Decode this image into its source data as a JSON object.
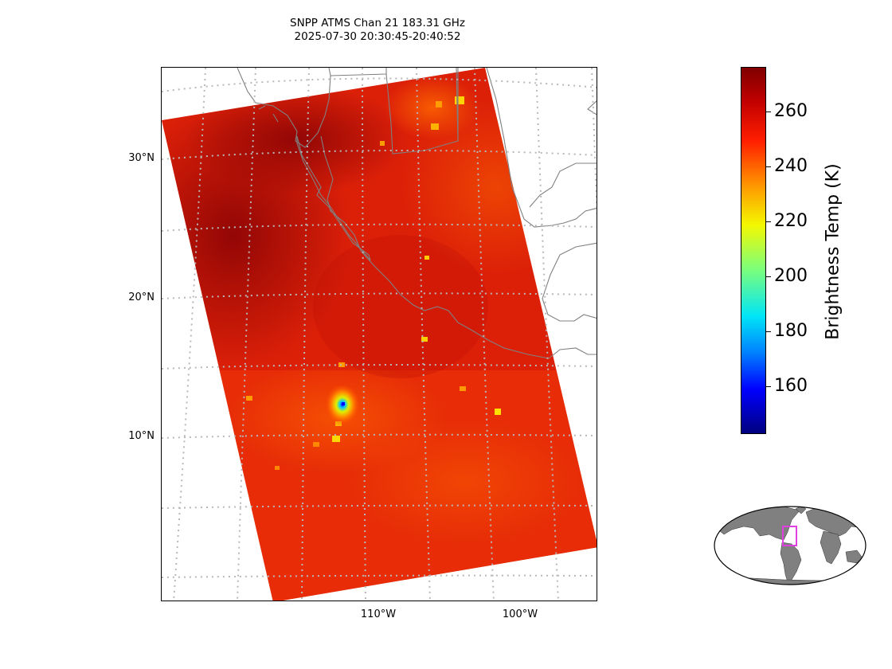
{
  "title": {
    "line1": "SNPP ATMS Chan 21 183.31 GHz",
    "line2": "2025-07-30 20:30:45-20:40:52"
  },
  "map": {
    "lat_labels": [
      "30°N",
      "20°N",
      "10°N"
    ],
    "lon_labels": [
      "110°W",
      "100°W"
    ],
    "hot_spot_color": "#0000ff",
    "swath_color": "#e8240a",
    "dry_color": "#9c0a08"
  },
  "colorbar": {
    "label": "Brightness Temp (K)",
    "ticks": [
      "260",
      "240",
      "220",
      "200",
      "180",
      "160"
    ],
    "range": [
      143,
      277
    ],
    "colormap": "jet"
  },
  "inset": {
    "box_color": "#e040e0",
    "land_color": "#808080"
  }
}
